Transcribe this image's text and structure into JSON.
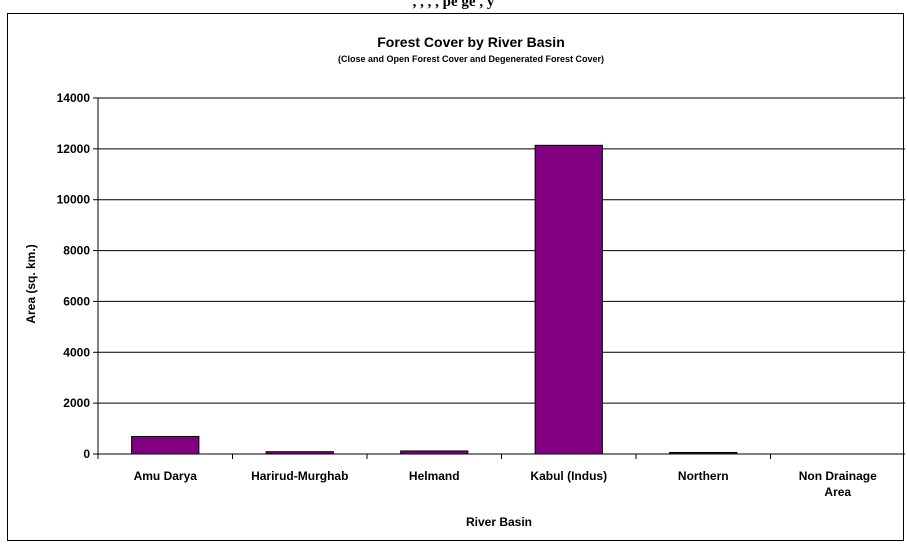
{
  "page": {
    "top_text": ", , , ,  pe        ge        ,  y   ",
    "colors": {
      "bar": "#800080",
      "axis": "#000000",
      "grid": "#000000"
    }
  },
  "chart_data": {
    "type": "bar",
    "title": "Forest Cover by River Basin",
    "subtitle": "(Close and Open Forest Cover and Degenerated Forest Cover)",
    "xlabel": "River Basin",
    "ylabel": "Area (sq. km.)",
    "categories": [
      "Amu Darya",
      "Harirud-Murghab",
      "Helmand",
      "Kabul (Indus)",
      "Northern",
      "Non Drainage Area"
    ],
    "category_lines": [
      [
        "Amu Darya"
      ],
      [
        "Harirud-Murghab"
      ],
      [
        "Helmand"
      ],
      [
        "Kabul (Indus)"
      ],
      [
        "Northern"
      ],
      [
        "Non Drainage",
        "Area"
      ]
    ],
    "values": [
      690,
      90,
      120,
      12140,
      60,
      0
    ],
    "ylim": [
      0,
      14000
    ],
    "yticks": [
      "0",
      "2000",
      "4000",
      "6000",
      "8000",
      "10000",
      "12000",
      "14000"
    ],
    "grid": true,
    "legend": "none"
  }
}
